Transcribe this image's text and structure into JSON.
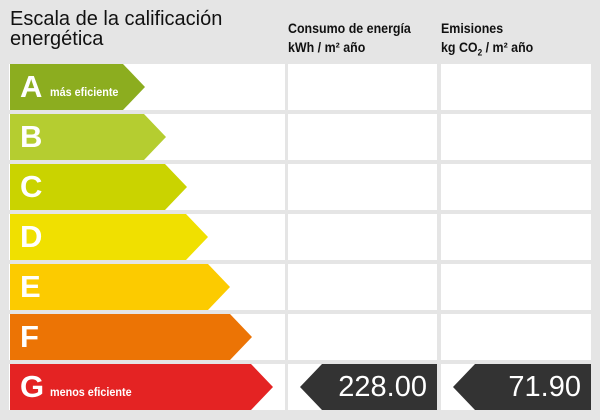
{
  "title": "Escala de la calificación energética",
  "columns": {
    "consumo": {
      "line1": "Consumo de energía",
      "line2": "kWh / m² año"
    },
    "emisiones": {
      "line1": "Emisiones",
      "line2_pre": "kg CO",
      "line2_sub": "2",
      "line2_post": " / m² año"
    }
  },
  "ratings": [
    {
      "letter": "A",
      "sub": "más eficiente",
      "color": "#8cad1f"
    },
    {
      "letter": "B",
      "sub": "",
      "color": "#b5cd30"
    },
    {
      "letter": "C",
      "sub": "",
      "color": "#cad300"
    },
    {
      "letter": "D",
      "sub": "",
      "color": "#f0e000"
    },
    {
      "letter": "E",
      "sub": "",
      "color": "#fccb00"
    },
    {
      "letter": "F",
      "sub": "",
      "color": "#ec7405"
    },
    {
      "letter": "G",
      "sub": "menos eficiente",
      "color": "#e42323"
    }
  ],
  "current": {
    "rating": "G",
    "consumo": "228.00",
    "emisiones": "71.90"
  }
}
